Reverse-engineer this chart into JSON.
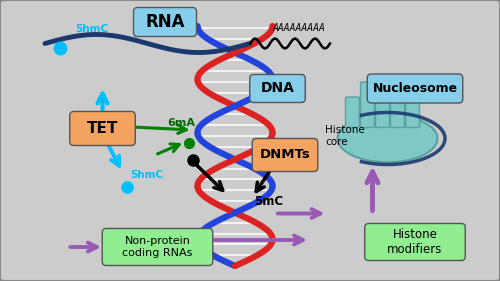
{
  "bg_color": "#2a2a2a",
  "panel_bg": "#cccccc",
  "panel_border": "#888888",
  "labels": {
    "RNA": "RNA",
    "poly_a": "AAAAAAAAA",
    "fivehmC_top": "5hmC",
    "DNA": "DNA",
    "Nucleosome": "Nucleosome",
    "Histone_core": "Histone\ncore",
    "TET": "TET",
    "sixmA": "6mA",
    "fivehmC_bot": "5hmC",
    "DNMTs": "DNMTs",
    "fivemc": "5mC",
    "NonProtein": "Non-protein\ncoding RNAs",
    "HistoneModifiers": "Histone\nmodifiers"
  },
  "colors": {
    "cyan_box": "#87CEEB",
    "orange_box": "#F4A460",
    "green_box": "#90EE90",
    "cyan_arrow": "#00BFFF",
    "purple_arrow": "#9B59B6",
    "red_helix": "#DD2222",
    "blue_helix": "#2244DD",
    "dark_blue_rna": "#1a3a6e",
    "cyan_dot": "#00BFFF",
    "teal_nucl": "#7EC8C8",
    "teal_nucl_edge": "#5aa0a0",
    "text_green": "#006600",
    "text_cyan": "#00BFFF",
    "panel_border": "#888888"
  }
}
